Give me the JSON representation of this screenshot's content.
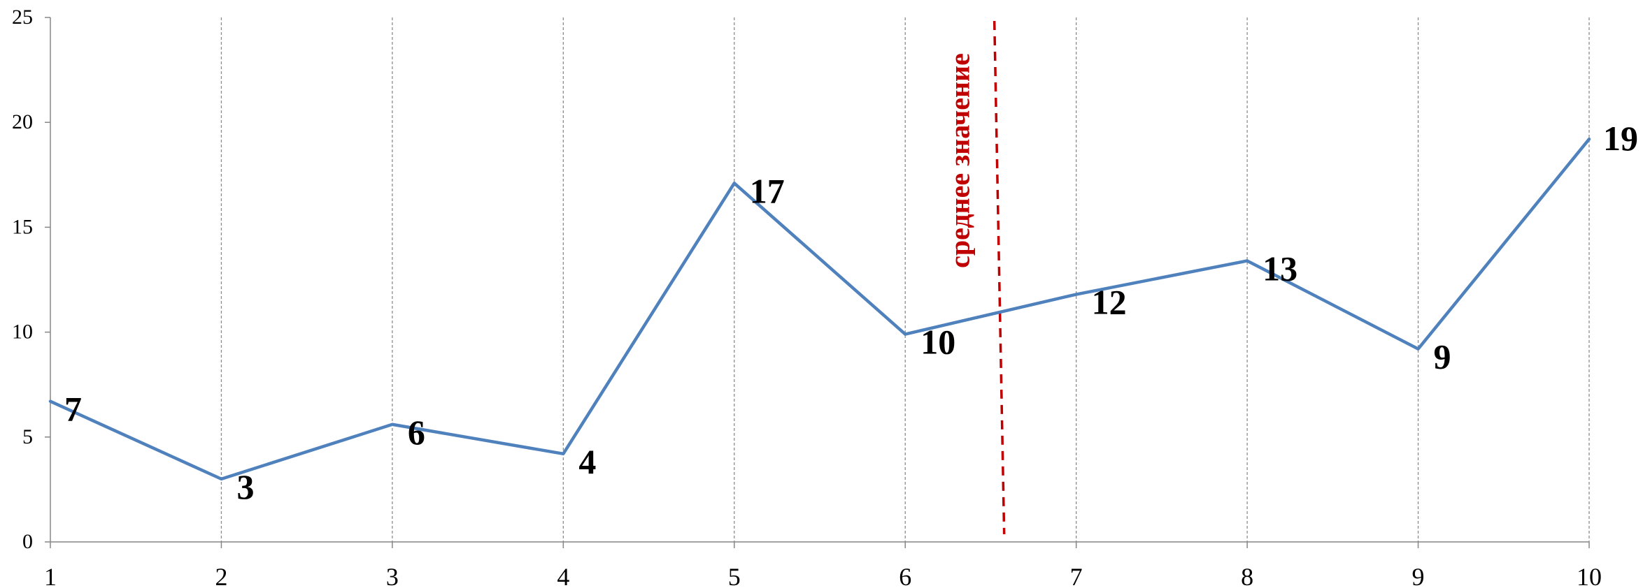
{
  "chart_data": {
    "type": "line",
    "title": "",
    "xlabel": "",
    "ylabel": "",
    "x": [
      1,
      2,
      3,
      4,
      5,
      6,
      7,
      8,
      9,
      10
    ],
    "x_tick_labels": [
      "1",
      "2",
      "3",
      "4",
      "5",
      "6",
      "7",
      "8",
      "9",
      "10"
    ],
    "y_plotted": [
      6.7,
      3.0,
      5.6,
      4.2,
      17.1,
      9.9,
      11.8,
      13.4,
      9.2,
      19.2
    ],
    "data_labels": [
      "7",
      "3",
      "6",
      "4",
      "17",
      "10",
      "12",
      "13",
      "9",
      "19"
    ],
    "ylim": [
      0,
      25
    ],
    "y_ticks": [
      0,
      5,
      10,
      15,
      20,
      25
    ],
    "y_tick_labels": [
      "0",
      "5",
      "10",
      "15",
      "20",
      "25"
    ],
    "vertical_gridlines": true,
    "horizontal_gridlines": false,
    "legend": "none",
    "series_color": "#4f81bd",
    "gridline_color": "#8c8c8c",
    "mean_line": {
      "x": 6.55,
      "label": "среднее значение",
      "color": "#c00000",
      "style": "dashed"
    }
  }
}
